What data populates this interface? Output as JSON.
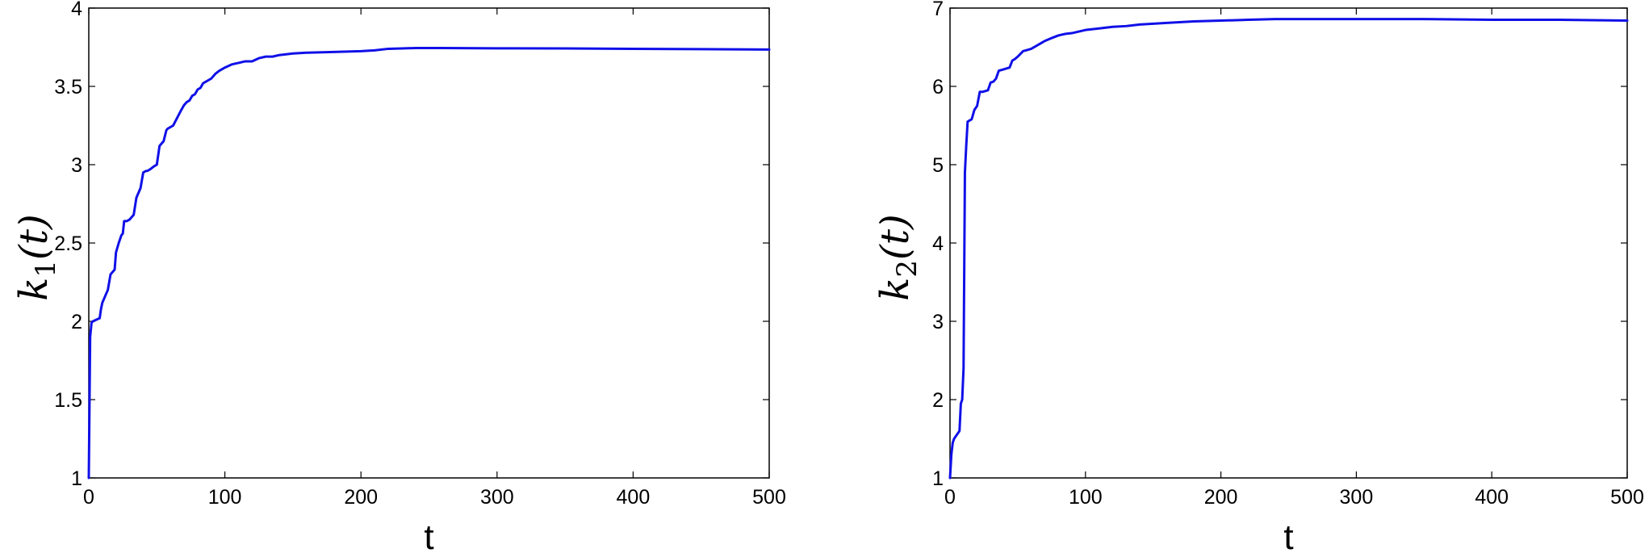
{
  "colors": {
    "series": "#1010e8",
    "axes": "#000000"
  },
  "chart_data": [
    {
      "type": "line",
      "title": "",
      "xlabel": "t",
      "ylabel": {
        "base": "k",
        "sub": "1",
        "arg": "(t)"
      },
      "xlim": [
        0,
        500
      ],
      "ylim": [
        1,
        4
      ],
      "xticks": [
        0,
        100,
        200,
        300,
        400,
        500
      ],
      "xtick_labels": [
        "0",
        "100",
        "200",
        "300",
        "400",
        "500"
      ],
      "yticks": [
        1,
        1.5,
        2,
        2.5,
        3,
        3.5,
        4
      ],
      "ytick_labels": [
        "1",
        "1.5",
        "2",
        "2.5",
        "3",
        "3.5",
        "4"
      ],
      "grid": false,
      "series": [
        {
          "x": [
            0,
            1,
            2,
            3,
            8,
            9,
            10,
            12,
            14,
            16,
            17,
            19,
            20,
            22,
            24,
            25,
            26,
            28,
            30,
            32,
            33,
            35,
            38,
            40,
            42,
            43,
            45,
            48,
            50,
            52,
            53,
            55,
            57,
            58,
            60,
            62,
            65,
            68,
            70,
            72,
            74,
            76,
            78,
            80,
            82,
            84,
            86,
            88,
            90,
            93,
            96,
            100,
            105,
            110,
            115,
            120,
            125,
            130,
            135,
            140,
            150,
            160,
            180,
            200,
            210,
            220,
            230,
            240,
            260,
            300,
            350,
            400,
            450,
            500
          ],
          "y": [
            1.0,
            1.9,
            1.99,
            2.0,
            2.02,
            2.08,
            2.12,
            2.16,
            2.2,
            2.3,
            2.31,
            2.33,
            2.44,
            2.5,
            2.55,
            2.56,
            2.64,
            2.64,
            2.65,
            2.67,
            2.68,
            2.79,
            2.85,
            2.95,
            2.96,
            2.96,
            2.97,
            2.99,
            3.0,
            3.12,
            3.13,
            3.15,
            3.22,
            3.23,
            3.24,
            3.25,
            3.3,
            3.35,
            3.38,
            3.4,
            3.41,
            3.44,
            3.45,
            3.48,
            3.49,
            3.52,
            3.53,
            3.54,
            3.55,
            3.58,
            3.6,
            3.62,
            3.64,
            3.65,
            3.66,
            3.66,
            3.68,
            3.69,
            3.69,
            3.7,
            3.71,
            3.715,
            3.72,
            3.725,
            3.73,
            3.74,
            3.742,
            3.745,
            3.745,
            3.743,
            3.742,
            3.74,
            3.738,
            3.735
          ]
        }
      ]
    },
    {
      "type": "line",
      "title": "",
      "xlabel": "t",
      "ylabel": {
        "base": "k",
        "sub": "2",
        "arg": "(t)"
      },
      "xlim": [
        0,
        500
      ],
      "ylim": [
        1,
        7
      ],
      "xticks": [
        0,
        100,
        200,
        300,
        400,
        500
      ],
      "xtick_labels": [
        "0",
        "100",
        "200",
        "300",
        "400",
        "500"
      ],
      "yticks": [
        1,
        2,
        3,
        4,
        5,
        6,
        7
      ],
      "ytick_labels": [
        "1",
        "2",
        "3",
        "4",
        "5",
        "6",
        "7"
      ],
      "grid": false,
      "series": [
        {
          "x": [
            0,
            1,
            2,
            3,
            5,
            7,
            8,
            9,
            10,
            11,
            12,
            13,
            14,
            16,
            18,
            20,
            22,
            24,
            26,
            28,
            30,
            32,
            34,
            36,
            38,
            40,
            44,
            46,
            48,
            50,
            54,
            56,
            60,
            64,
            68,
            70,
            74,
            80,
            85,
            90,
            100,
            110,
            120,
            130,
            140,
            160,
            180,
            200,
            220,
            240,
            260,
            300,
            350,
            400,
            450,
            500
          ],
          "y": [
            1.0,
            1.3,
            1.45,
            1.5,
            1.55,
            1.6,
            1.95,
            2.0,
            2.4,
            4.9,
            5.25,
            5.55,
            5.56,
            5.58,
            5.7,
            5.75,
            5.93,
            5.93,
            5.94,
            5.95,
            6.05,
            6.06,
            6.1,
            6.2,
            6.21,
            6.22,
            6.24,
            6.33,
            6.35,
            6.38,
            6.45,
            6.46,
            6.48,
            6.52,
            6.56,
            6.58,
            6.61,
            6.65,
            6.67,
            6.68,
            6.72,
            6.74,
            6.76,
            6.77,
            6.79,
            6.81,
            6.83,
            6.84,
            6.85,
            6.86,
            6.86,
            6.86,
            6.86,
            6.85,
            6.85,
            6.84
          ]
        }
      ]
    }
  ]
}
